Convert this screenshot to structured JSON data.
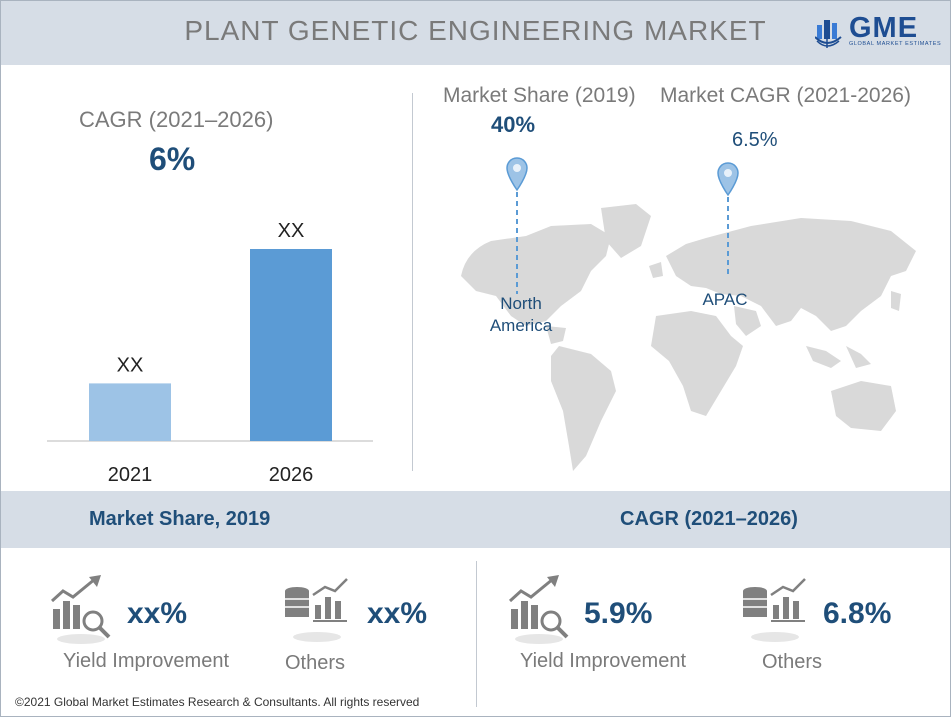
{
  "header": {
    "title": "PLANT GENETIC ENGINEERING MARKET"
  },
  "logo": {
    "text": "GME",
    "subtitle": "GLOBAL MARKET ESTIMATES",
    "icon": "globe-building-icon"
  },
  "cagr_panel": {
    "label": "CAGR (2021–2026)",
    "value": "6%"
  },
  "chart_data": {
    "type": "bar",
    "categories": [
      "2021",
      "2026"
    ],
    "values": [
      30,
      100
    ],
    "data_labels": [
      "XX",
      "XX"
    ],
    "colors": [
      "#9dc3e6",
      "#5b9bd5"
    ],
    "title": "",
    "xlabel": "",
    "ylabel": "",
    "ylim": [
      0,
      100
    ],
    "grid": false
  },
  "map_panel": {
    "share_label": "Market Share (2019)",
    "share_value": "40%",
    "share_region": "North America",
    "cagr_label": "Market CAGR (2021-2026)",
    "cagr_value": "6.5%",
    "cagr_region": "APAC",
    "pin_color": "#9dc3e6",
    "map_color": "#d9d9d9",
    "pin_icon": "map-pin-icon",
    "map_icon": "world-map-icon"
  },
  "share_section": {
    "title": "Market Share, 2019",
    "items": [
      {
        "value": "xx%",
        "label": "Yield Improvement",
        "icon": "growth-chart-magnifier-icon"
      },
      {
        "value": "xx%",
        "label": "Others",
        "icon": "coin-stack-chart-icon"
      }
    ]
  },
  "cagr_section": {
    "title": "CAGR (2021–2026)",
    "items": [
      {
        "value": "5.9%",
        "label": "Yield Improvement",
        "icon": "growth-chart-magnifier-icon"
      },
      {
        "value": "6.8%",
        "label": "Others",
        "icon": "coin-stack-chart-icon"
      }
    ]
  },
  "footer": {
    "text": "©2021 Global Market Estimates Research & Consultants. All rights reserved"
  }
}
